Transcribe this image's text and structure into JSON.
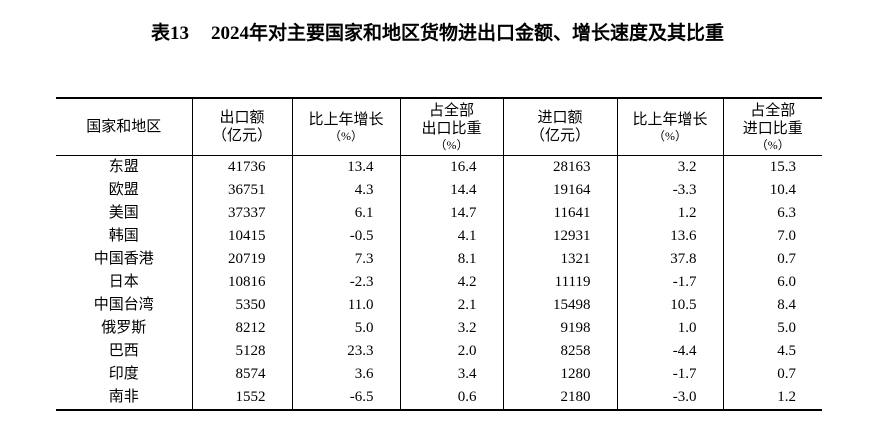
{
  "title": {
    "prefix": "表13",
    "main": "2024年对主要国家和地区货物进出口金额、增长速度及其比重"
  },
  "colors": {
    "text": "#000000",
    "border": "#000000",
    "background": "#ffffff"
  },
  "table": {
    "columns": [
      {
        "id": "region",
        "width": 136,
        "lines": [
          "国家和地区"
        ]
      },
      {
        "id": "export-amount",
        "width": 100,
        "lines": [
          "出口额",
          "（亿元）"
        ]
      },
      {
        "id": "export-growth",
        "width": 108,
        "lines": [
          "比上年增长",
          "（%）"
        ]
      },
      {
        "id": "export-share",
        "width": 103,
        "lines": [
          "占全部",
          "出口比重",
          "（%）"
        ]
      },
      {
        "id": "import-amount",
        "width": 114,
        "lines": [
          "进口额",
          "（亿元）"
        ]
      },
      {
        "id": "import-growth",
        "width": 106,
        "lines": [
          "比上年增长",
          "（%）"
        ]
      },
      {
        "id": "import-share",
        "width": 99,
        "lines": [
          "占全部",
          "进口比重",
          "（%）"
        ]
      }
    ],
    "rows": [
      {
        "region": "东盟",
        "values": [
          "41736",
          "13.4",
          "16.4",
          "28163",
          "3.2",
          "15.3"
        ]
      },
      {
        "region": "欧盟",
        "values": [
          "36751",
          "4.3",
          "14.4",
          "19164",
          "-3.3",
          "10.4"
        ]
      },
      {
        "region": "美国",
        "values": [
          "37337",
          "6.1",
          "14.7",
          "11641",
          "1.2",
          "6.3"
        ]
      },
      {
        "region": "韩国",
        "values": [
          "10415",
          "-0.5",
          "4.1",
          "12931",
          "13.6",
          "7.0"
        ]
      },
      {
        "region": "中国香港",
        "values": [
          "20719",
          "7.3",
          "8.1",
          "1321",
          "37.8",
          "0.7"
        ]
      },
      {
        "region": "日本",
        "values": [
          "10816",
          "-2.3",
          "4.2",
          "11119",
          "-1.7",
          "6.0"
        ]
      },
      {
        "region": "中国台湾",
        "values": [
          "5350",
          "11.0",
          "2.1",
          "15498",
          "10.5",
          "8.4"
        ]
      },
      {
        "region": "俄罗斯",
        "values": [
          "8212",
          "5.0",
          "3.2",
          "9198",
          "1.0",
          "5.0"
        ]
      },
      {
        "region": "巴西",
        "values": [
          "5128",
          "23.3",
          "2.0",
          "8258",
          "-4.4",
          "4.5"
        ]
      },
      {
        "region": "印度",
        "values": [
          "8574",
          "3.6",
          "3.4",
          "1280",
          "-1.7",
          "0.7"
        ]
      },
      {
        "region": "南非",
        "values": [
          "1552",
          "-6.5",
          "0.6",
          "2180",
          "-3.0",
          "1.2"
        ]
      }
    ]
  }
}
